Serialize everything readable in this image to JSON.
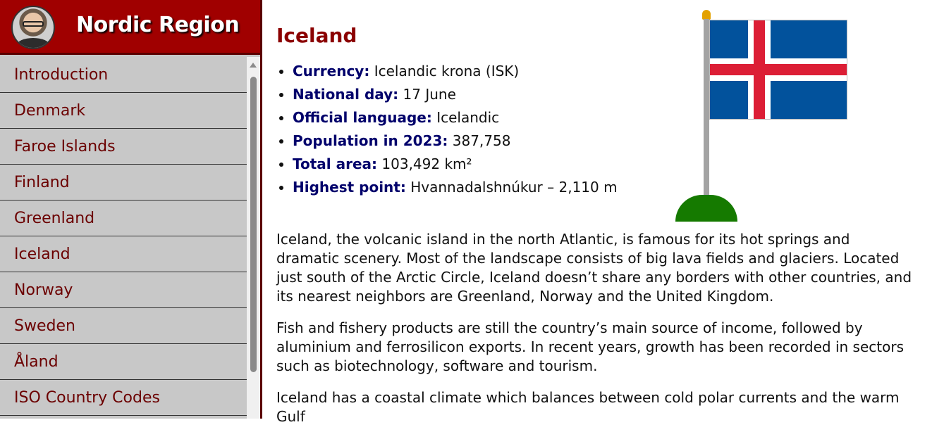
{
  "site": {
    "title": "Nordic Region"
  },
  "nav": {
    "items": [
      {
        "label": "Introduction"
      },
      {
        "label": "Denmark"
      },
      {
        "label": "Faroe Islands"
      },
      {
        "label": "Finland"
      },
      {
        "label": "Greenland"
      },
      {
        "label": "Iceland"
      },
      {
        "label": "Norway"
      },
      {
        "label": "Sweden"
      },
      {
        "label": "Åland"
      },
      {
        "label": "ISO Country Codes"
      }
    ]
  },
  "country": {
    "name": "Iceland",
    "facts": [
      {
        "label": "Currency:",
        "value": " Icelandic krona (ISK)"
      },
      {
        "label": "National day:",
        "value": " 17 June"
      },
      {
        "label": "Official language:",
        "value": " Icelandic"
      },
      {
        "label": "Population in 2023:",
        "value": " 387,758"
      },
      {
        "label": "Total area:",
        "value": " 103,492 km²"
      },
      {
        "label": "Highest point:",
        "value": " Hvannadalshnúkur – 2,110 m"
      }
    ],
    "paragraphs": [
      "Iceland, the volcanic island in the north Atlantic, is famous for its hot springs and dramatic scenery. Most of the landscape consists of big lava fields and glaciers. Located just south of the Arctic Circle, Iceland doesn’t share any borders with other countries, and its nearest neighbors are Greenland, Norway and the United Kingdom.",
      "Fish and fishery products are still the country’s main source of income, followed by aluminium and ferrosilicon exports. In recent years, growth has been recorded in sectors such as biotechnology, software and tourism.",
      "Iceland has a coastal climate which balances between cold polar currents and the warm Gulf"
    ]
  },
  "colors": {
    "header_bg": "#a00000",
    "nav_bg": "#c8c8c8",
    "nav_text": "#6b0000",
    "title_text": "#8b0000",
    "fact_label": "#00006b",
    "flag_blue": "#02529c",
    "flag_red": "#dc1e35"
  },
  "icons": {
    "avatar": "user-photo-avatar",
    "flag": "iceland-flag-icon"
  }
}
